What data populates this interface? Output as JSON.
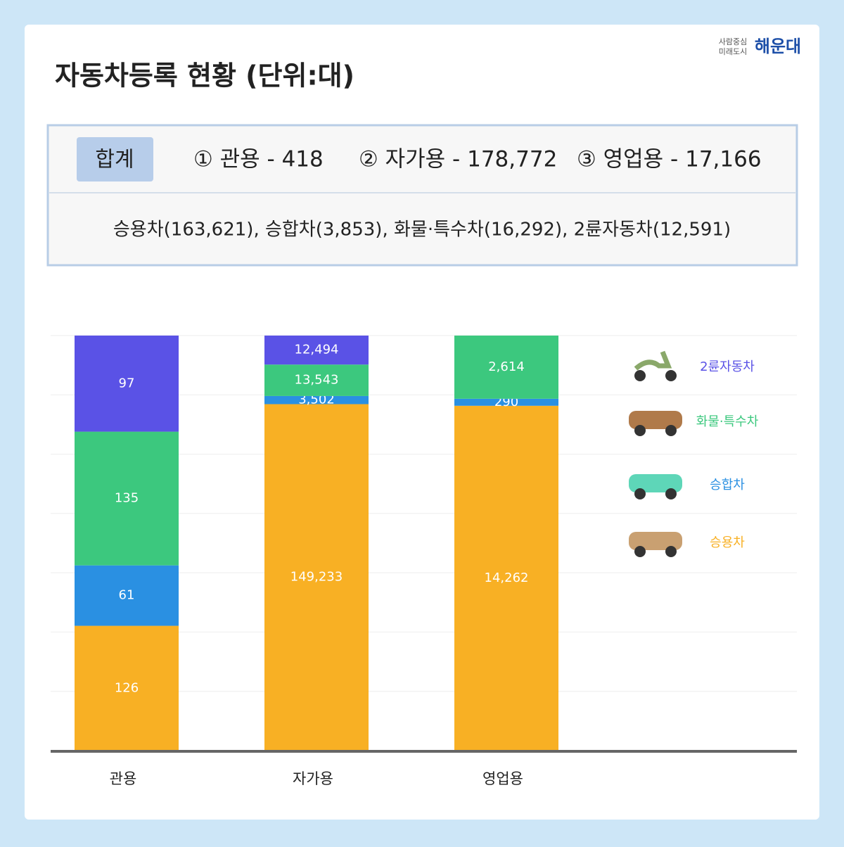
{
  "header": {
    "slogan_line1": "사람중심",
    "slogan_line2": "미래도시",
    "logo": "해운대"
  },
  "summary": {
    "label": "합계",
    "items": [
      "① 관용 - 418",
      "② 자가용 - 178,772",
      "③ 영업용 - 17,166"
    ],
    "detail": "승용차(163,621), 승합차(3,853), 화물·특수차(16,292), 2륜자동차(12,591)"
  },
  "chart_data": {
    "type": "bar",
    "stacking": "percent",
    "title": "자동차등록 현황 (단위:대)",
    "categories": [
      "관용",
      "자가용",
      "영업용"
    ],
    "series": [
      {
        "name": "승용차",
        "color": "#f8b024",
        "values": [
          126,
          149233,
          14262
        ],
        "value_labels": [
          "126",
          "149,233",
          "14,262"
        ]
      },
      {
        "name": "승합차",
        "color": "#2a90e2",
        "values": [
          61,
          3502,
          290
        ],
        "value_labels": [
          "61",
          "3,502",
          "290"
        ]
      },
      {
        "name": "화물·특수차",
        "color": "#3cc87e",
        "values": [
          135,
          13543,
          2614
        ],
        "value_labels": [
          "135",
          "13,543",
          "2,614"
        ]
      },
      {
        "name": "2륜자동차",
        "color": "#5a52e6",
        "values": [
          97,
          12494,
          0
        ],
        "value_labels": [
          "97",
          "12,494",
          null
        ]
      }
    ],
    "grid": true,
    "legend": "right"
  }
}
